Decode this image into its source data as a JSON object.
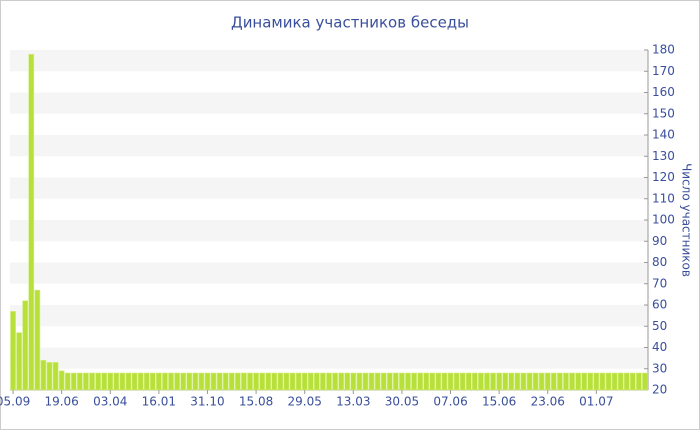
{
  "chart_data": {
    "type": "bar",
    "title": "Динамика участников беседы",
    "y_label": "Число участников",
    "categories": [
      "05.09",
      null,
      null,
      null,
      null,
      null,
      null,
      null,
      "19.06",
      null,
      null,
      null,
      null,
      null,
      null,
      null,
      "03.04",
      null,
      null,
      null,
      null,
      null,
      null,
      null,
      "16.01",
      null,
      null,
      null,
      null,
      null,
      null,
      null,
      "31.10",
      null,
      null,
      null,
      null,
      null,
      null,
      null,
      "15.08",
      null,
      null,
      null,
      null,
      null,
      null,
      null,
      "29.05",
      null,
      null,
      null,
      null,
      null,
      null,
      null,
      "13.03",
      null,
      null,
      null,
      null,
      null,
      null,
      null,
      "30.05",
      null,
      null,
      null,
      null,
      null,
      null,
      null,
      "07.06",
      null,
      null,
      null,
      null,
      null,
      null,
      null,
      "15.06",
      null,
      null,
      null,
      null,
      null,
      null,
      null,
      "23.06",
      null,
      null,
      null,
      null,
      null,
      null,
      null,
      "01.07",
      null,
      null,
      null,
      null,
      null,
      null,
      null,
      null
    ],
    "values": [
      57,
      47,
      62,
      178,
      67,
      34,
      33,
      33,
      29,
      28,
      28,
      28,
      28,
      28,
      28,
      28,
      28,
      28,
      28,
      28,
      28,
      28,
      28,
      28,
      28,
      28,
      28,
      28,
      28,
      28,
      28,
      28,
      28,
      28,
      28,
      28,
      28,
      28,
      28,
      28,
      28,
      28,
      28,
      28,
      28,
      28,
      28,
      28,
      28,
      28,
      28,
      28,
      28,
      28,
      28,
      28,
      28,
      28,
      28,
      28,
      28,
      28,
      28,
      28,
      28,
      28,
      28,
      28,
      28,
      28,
      28,
      28,
      28,
      28,
      28,
      28,
      28,
      28,
      28,
      28,
      28,
      28,
      28,
      28,
      28,
      28,
      28,
      28,
      28,
      28,
      28,
      28,
      28,
      28,
      28,
      28,
      28,
      28,
      28,
      28,
      28,
      28,
      28,
      28,
      28
    ],
    "color": "#b8e03a",
    "ylim": [
      20,
      180
    ],
    "yticks": [
      20,
      30,
      40,
      50,
      60,
      70,
      80,
      90,
      100,
      110,
      120,
      130,
      140,
      150,
      160,
      170,
      180
    ],
    "y_axis_side": "right",
    "grid": true
  }
}
